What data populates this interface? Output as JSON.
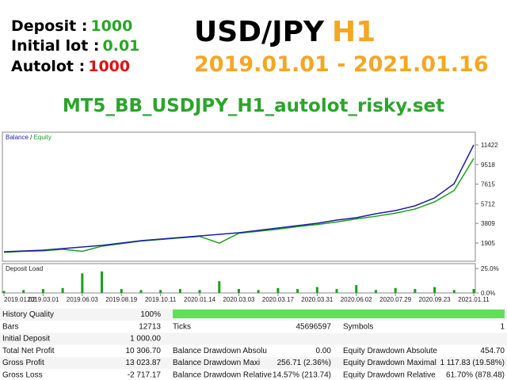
{
  "header": {
    "deposit_label": "Deposit :",
    "deposit_value": "1000",
    "lot_label": "Initial lot :",
    "lot_value": "0.01",
    "autolot_label": "Autolot :",
    "autolot_value": "1000",
    "symbol": "USD/JPY",
    "timeframe": "H1",
    "period": "2019.01.01 - 2021.01.16",
    "setfile": "MT5_BB_USDJPY_H1_autolot_risky.set"
  },
  "chart_data": [
    {
      "type": "line",
      "legend": "Balance / Equity",
      "categories": [
        "2019.01.02",
        null,
        "2019.03.01",
        null,
        "2019.06.03",
        null,
        "2019.08.19",
        null,
        "2019.10.11",
        null,
        "2020.01.14",
        null,
        "2020.03.03",
        null,
        "2020.03.17",
        null,
        "2020.03.31",
        null,
        "2020.06.02",
        null,
        "2020.07.29",
        null,
        "2020.09.23",
        null,
        "2021.01.11"
      ],
      "series": [
        {
          "name": "Balance",
          "color": "#1f1fa0",
          "values": [
            1061,
            1138,
            1214,
            1368,
            1521,
            1675,
            1905,
            2135,
            2289,
            2442,
            2596,
            2749,
            2903,
            3133,
            3363,
            3594,
            3824,
            4131,
            4361,
            4745,
            5052,
            5512,
            6280,
            7661,
            11422
          ]
        },
        {
          "name": "Equity",
          "color": "#1aa01a",
          "values": [
            1000,
            1100,
            1150,
            1300,
            1100,
            1600,
            1850,
            2100,
            2250,
            2400,
            2550,
            1900,
            2850,
            3050,
            3250,
            3500,
            3700,
            3950,
            4250,
            4500,
            4800,
            5200,
            5900,
            7000,
            10100
          ]
        }
      ],
      "ylim": [
        140,
        12650
      ],
      "yticks": [
        1905,
        3809,
        5712,
        7615,
        9518,
        11422
      ]
    },
    {
      "type": "bar",
      "title": "Deposit Load",
      "color": "#1aa01a",
      "values": [
        2,
        3,
        4,
        5,
        20,
        22,
        4,
        3,
        3,
        4,
        3,
        12,
        4,
        3,
        5,
        4,
        6,
        4,
        8,
        3,
        5,
        4,
        6,
        3,
        4
      ],
      "ylim": [
        0,
        30
      ],
      "yticks": [
        {
          "value": 0,
          "label": "0.0%"
        },
        {
          "value": 25,
          "label": "25.0%"
        }
      ]
    }
  ],
  "table": {
    "rows": [
      [
        "History Quality",
        "100%"
      ],
      [
        "Bars",
        "12713",
        "Ticks",
        "45696597",
        "Symbols",
        "1"
      ],
      [
        "Initial Deposit",
        "1 000.00"
      ],
      [
        "Total Net Profit",
        "10 306.70",
        "Balance Drawdown Absolu",
        "0.00",
        "Equity Drawdown Absolute",
        "454.70"
      ],
      [
        "Gross Profit",
        "13 023.87",
        "Balance Drawdown Maxi",
        "256.71 (2.36%)",
        "Equity Drawdown Maximal",
        "1 117.83 (19.58%)"
      ],
      [
        "Gross Loss",
        "-2 717.17",
        "Balance Drawdown Relative",
        "14.57% (213.74)",
        "Equity Drawdown Relative",
        "61.70% (878.48)"
      ]
    ]
  }
}
